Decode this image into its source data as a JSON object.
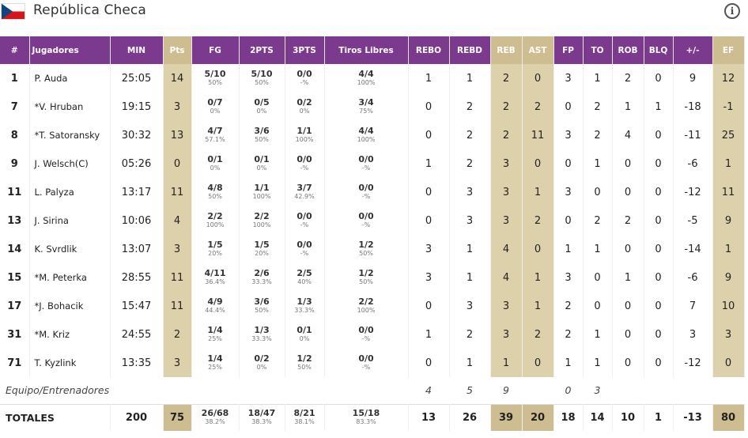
{
  "team": {
    "name": "República Checa"
  },
  "header": {
    "num": "#",
    "player": "Jugadores",
    "min": "MIN",
    "pts": "Pts",
    "fg": "FG",
    "p2": "2PTS",
    "p3": "3PTS",
    "ft": "Tiros Libres",
    "rebo": "REBO",
    "rebd": "REBD",
    "reb": "REB",
    "ast": "AST",
    "fp": "FP",
    "to": "TO",
    "rob": "ROB",
    "blq": "BLQ",
    "pm": "+/-",
    "ef": "EF"
  },
  "players": [
    {
      "num": "1",
      "name": "P. Auda",
      "min": "25:05",
      "pts": "14",
      "fg": "5/10",
      "fg_pct": "50%",
      "p2": "5/10",
      "p2_pct": "50%",
      "p3": "0/0",
      "p3_pct": "-%",
      "ft": "4/4",
      "ft_pct": "100%",
      "rebo": "1",
      "rebd": "1",
      "reb": "2",
      "ast": "0",
      "fp": "3",
      "to": "1",
      "rob": "2",
      "blq": "0",
      "pm": "9",
      "ef": "12"
    },
    {
      "num": "7",
      "name": "*V. Hruban",
      "min": "19:15",
      "pts": "3",
      "fg": "0/7",
      "fg_pct": "0%",
      "p2": "0/5",
      "p2_pct": "0%",
      "p3": "0/2",
      "p3_pct": "0%",
      "ft": "3/4",
      "ft_pct": "75%",
      "rebo": "0",
      "rebd": "2",
      "reb": "2",
      "ast": "2",
      "fp": "0",
      "to": "2",
      "rob": "1",
      "blq": "1",
      "pm": "-18",
      "ef": "-1"
    },
    {
      "num": "8",
      "name": "*T. Satoransky",
      "min": "30:32",
      "pts": "13",
      "fg": "4/7",
      "fg_pct": "57.1%",
      "p2": "3/6",
      "p2_pct": "50%",
      "p3": "1/1",
      "p3_pct": "100%",
      "ft": "4/4",
      "ft_pct": "100%",
      "rebo": "0",
      "rebd": "2",
      "reb": "2",
      "ast": "11",
      "fp": "3",
      "to": "2",
      "rob": "4",
      "blq": "0",
      "pm": "-11",
      "ef": "25"
    },
    {
      "num": "9",
      "name": "J. Welsch(C)",
      "min": "05:26",
      "pts": "0",
      "fg": "0/1",
      "fg_pct": "0%",
      "p2": "0/1",
      "p2_pct": "0%",
      "p3": "0/0",
      "p3_pct": "-%",
      "ft": "0/0",
      "ft_pct": "-%",
      "rebo": "1",
      "rebd": "2",
      "reb": "3",
      "ast": "0",
      "fp": "0",
      "to": "1",
      "rob": "0",
      "blq": "0",
      "pm": "-6",
      "ef": "1"
    },
    {
      "num": "11",
      "name": "L. Palyza",
      "min": "13:17",
      "pts": "11",
      "fg": "4/8",
      "fg_pct": "50%",
      "p2": "1/1",
      "p2_pct": "100%",
      "p3": "3/7",
      "p3_pct": "42.9%",
      "ft": "0/0",
      "ft_pct": "-%",
      "rebo": "0",
      "rebd": "3",
      "reb": "3",
      "ast": "1",
      "fp": "3",
      "to": "0",
      "rob": "0",
      "blq": "0",
      "pm": "-12",
      "ef": "11"
    },
    {
      "num": "13",
      "name": "J. Sirina",
      "min": "10:06",
      "pts": "4",
      "fg": "2/2",
      "fg_pct": "100%",
      "p2": "2/2",
      "p2_pct": "100%",
      "p3": "0/0",
      "p3_pct": "-%",
      "ft": "0/0",
      "ft_pct": "-%",
      "rebo": "0",
      "rebd": "3",
      "reb": "3",
      "ast": "2",
      "fp": "0",
      "to": "2",
      "rob": "2",
      "blq": "0",
      "pm": "-5",
      "ef": "9"
    },
    {
      "num": "14",
      "name": "K. Svrdlik",
      "min": "13:07",
      "pts": "3",
      "fg": "1/5",
      "fg_pct": "20%",
      "p2": "1/5",
      "p2_pct": "20%",
      "p3": "0/0",
      "p3_pct": "-%",
      "ft": "1/2",
      "ft_pct": "50%",
      "rebo": "3",
      "rebd": "1",
      "reb": "4",
      "ast": "0",
      "fp": "1",
      "to": "1",
      "rob": "0",
      "blq": "0",
      "pm": "-14",
      "ef": "1"
    },
    {
      "num": "15",
      "name": "*M. Peterka",
      "min": "28:55",
      "pts": "11",
      "fg": "4/11",
      "fg_pct": "36.4%",
      "p2": "2/6",
      "p2_pct": "33.3%",
      "p3": "2/5",
      "p3_pct": "40%",
      "ft": "1/2",
      "ft_pct": "50%",
      "rebo": "3",
      "rebd": "1",
      "reb": "4",
      "ast": "1",
      "fp": "3",
      "to": "0",
      "rob": "1",
      "blq": "0",
      "pm": "-6",
      "ef": "9"
    },
    {
      "num": "17",
      "name": "*J. Bohacik",
      "min": "15:47",
      "pts": "11",
      "fg": "4/9",
      "fg_pct": "44.4%",
      "p2": "3/6",
      "p2_pct": "50%",
      "p3": "1/3",
      "p3_pct": "33.3%",
      "ft": "2/2",
      "ft_pct": "100%",
      "rebo": "0",
      "rebd": "3",
      "reb": "3",
      "ast": "1",
      "fp": "2",
      "to": "0",
      "rob": "0",
      "blq": "0",
      "pm": "7",
      "ef": "10"
    },
    {
      "num": "31",
      "name": "*M. Kriz",
      "min": "24:55",
      "pts": "2",
      "fg": "1/4",
      "fg_pct": "25%",
      "p2": "1/3",
      "p2_pct": "33.3%",
      "p3": "0/1",
      "p3_pct": "0%",
      "ft": "0/0",
      "ft_pct": "-%",
      "rebo": "1",
      "rebd": "2",
      "reb": "3",
      "ast": "2",
      "fp": "2",
      "to": "1",
      "rob": "0",
      "blq": "0",
      "pm": "3",
      "ef": "3"
    },
    {
      "num": "71",
      "name": "T. Kyzlink",
      "min": "13:35",
      "pts": "3",
      "fg": "1/4",
      "fg_pct": "25%",
      "p2": "0/2",
      "p2_pct": "0%",
      "p3": "1/2",
      "p3_pct": "50%",
      "ft": "0/0",
      "ft_pct": "-%",
      "rebo": "0",
      "rebd": "1",
      "reb": "1",
      "ast": "0",
      "fp": "1",
      "to": "1",
      "rob": "0",
      "blq": "0",
      "pm": "-12",
      "ef": "0"
    }
  ],
  "team_row": {
    "label": "Equipo/Entrenadores",
    "rebo": "4",
    "rebd": "5",
    "reb": "9",
    "fp": "0",
    "to": "3"
  },
  "totals": {
    "label": "TOTALES",
    "min": "200",
    "pts": "75",
    "fg": "26/68",
    "fg_pct": "38.2%",
    "p2": "18/47",
    "p2_pct": "38.3%",
    "p3": "8/21",
    "p3_pct": "38.1%",
    "ft": "15/18",
    "ft_pct": "83.3%",
    "rebo": "13",
    "rebd": "26",
    "reb": "39",
    "ast": "20",
    "fp": "18",
    "to": "14",
    "rob": "10",
    "blq": "1",
    "pm": "-13",
    "ef": "80"
  },
  "colors": {
    "header_bg": "#7c3a8e",
    "highlight_header": "#cfbd92",
    "highlight_cell": "#ddd1ac"
  },
  "icons": {
    "flag": "czech-flag-icon",
    "info": "info-icon"
  }
}
